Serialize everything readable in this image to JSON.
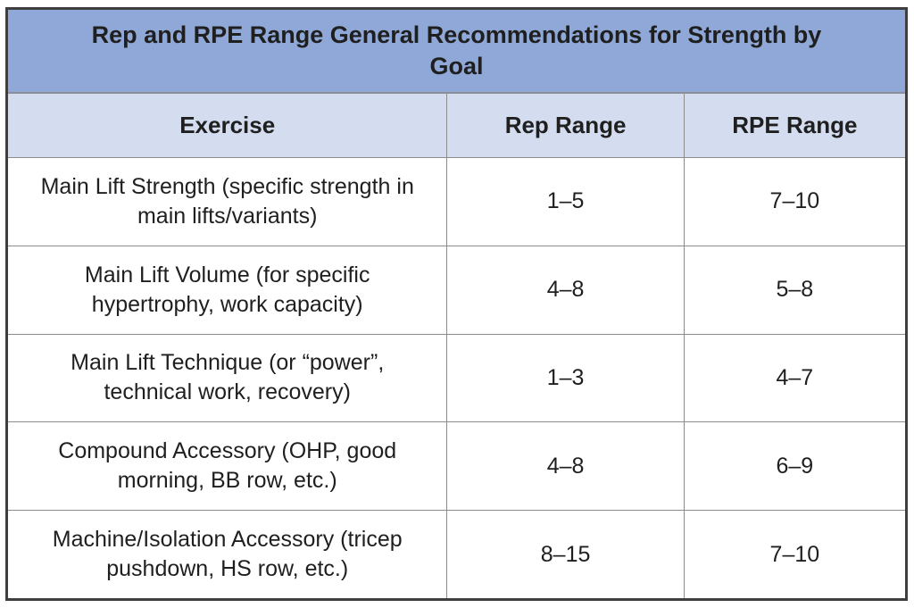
{
  "colors": {
    "title_bar_bg": "#8FA8D7",
    "header_row_bg": "#D4DCEF",
    "outer_border": "#3e3e3e",
    "grid_line": "#8c8c8c",
    "text": "#1f1f1f"
  },
  "chart_data": {
    "type": "table",
    "title": "Rep and RPE Range General Recommendations for Strength by Goal",
    "columns": [
      "Exercise",
      "Rep Range",
      "RPE Range"
    ],
    "rows": [
      [
        "Main Lift Strength (specific strength in main lifts/variants)",
        "1–5",
        "7–10"
      ],
      [
        "Main Lift Volume (for specific hypertrophy, work capacity)",
        "4–8",
        "5–8"
      ],
      [
        "Main Lift Technique (or “power”, technical work, recovery)",
        "1–3",
        "4–7"
      ],
      [
        "Compound Accessory (OHP, good morning, BB row, etc.)",
        "4–8",
        "6–9"
      ],
      [
        "Machine/Isolation Accessory (tricep pushdown, HS row, etc.)",
        "8–15",
        "7–10"
      ]
    ]
  }
}
